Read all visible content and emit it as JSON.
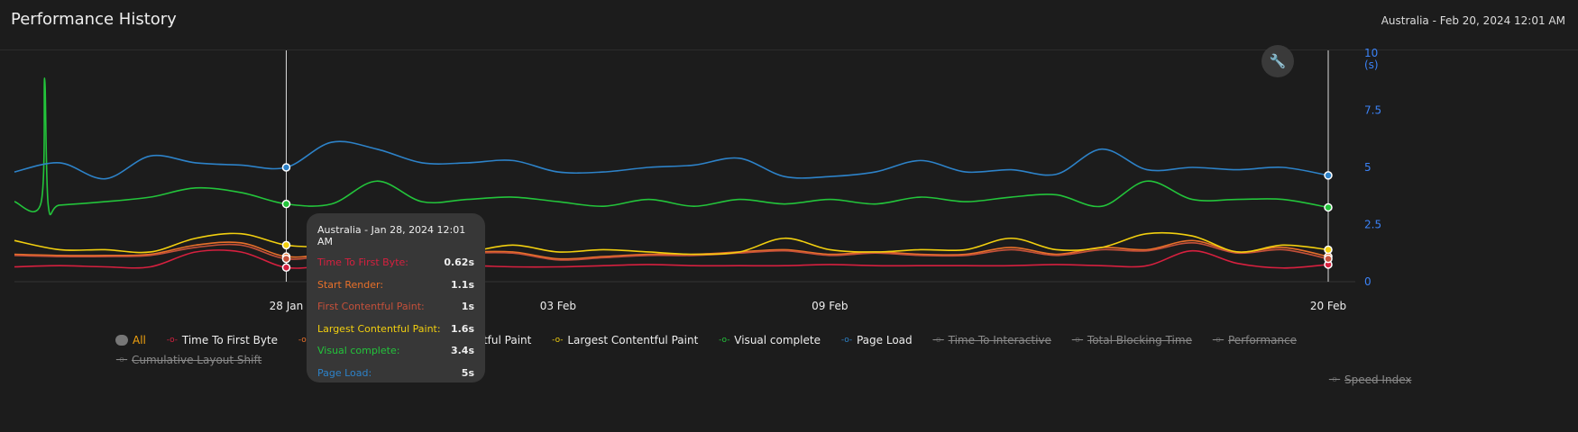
{
  "header": {
    "title": "Performance History",
    "subtitle": "Australia - Feb 20, 2024 12:01 AM"
  },
  "toolbar": {
    "settings_icon": "wrench-icon"
  },
  "chart_data": {
    "type": "line",
    "x_start": "2024-01-22",
    "x_end": "2024-02-20",
    "x_ticks": [
      {
        "date": "2024-01-28",
        "label": "28 Jan"
      },
      {
        "date": "2024-02-03",
        "label": "03 Feb"
      },
      {
        "date": "2024-02-09",
        "label": "09 Feb"
      },
      {
        "date": "2024-02-20",
        "label": "20 Feb"
      }
    ],
    "ylim": [
      0,
      10
    ],
    "y_ticks": [
      "0",
      "2.5",
      "5",
      "7.5",
      "10"
    ],
    "ylabel": "(s)",
    "y_axis_position": "right",
    "grid": false,
    "legend_position": "bottom",
    "series": [
      {
        "name": "Time To First Byte",
        "color": "#d6203f",
        "visible": true,
        "values": [
          0.65,
          0.7,
          0.65,
          0.65,
          1.3,
          1.3,
          0.62,
          0.7,
          0.6,
          0.65,
          0.7,
          0.65,
          0.65,
          0.7,
          0.75,
          0.7,
          0.7,
          0.7,
          0.75,
          0.7,
          0.7,
          0.7,
          0.7,
          0.75,
          0.7,
          0.7,
          1.35,
          0.8,
          0.6,
          0.75
        ]
      },
      {
        "name": "Start Render",
        "color": "#e8702a",
        "visible": true,
        "values": [
          1.2,
          1.15,
          1.15,
          1.2,
          1.6,
          1.7,
          1.1,
          1.2,
          1.2,
          1.2,
          1.3,
          1.3,
          1.0,
          1.1,
          1.2,
          1.2,
          1.3,
          1.4,
          1.2,
          1.3,
          1.2,
          1.2,
          1.5,
          1.2,
          1.5,
          1.4,
          1.8,
          1.3,
          1.5,
          1.1
        ]
      },
      {
        "name": "First Contentful Paint",
        "color": "#c5503a",
        "visible": true,
        "values": [
          1.15,
          1.1,
          1.1,
          1.15,
          1.5,
          1.6,
          1.0,
          1.15,
          1.15,
          1.15,
          1.25,
          1.25,
          0.95,
          1.05,
          1.15,
          1.15,
          1.25,
          1.35,
          1.15,
          1.25,
          1.15,
          1.15,
          1.4,
          1.15,
          1.4,
          1.35,
          1.7,
          1.25,
          1.4,
          1.0
        ]
      },
      {
        "name": "Largest Contentful Paint",
        "color": "#f2cf0f",
        "visible": true,
        "values": [
          1.8,
          1.4,
          1.4,
          1.3,
          1.9,
          2.1,
          1.6,
          1.5,
          1.3,
          1.2,
          1.3,
          1.6,
          1.3,
          1.4,
          1.3,
          1.2,
          1.3,
          1.9,
          1.4,
          1.3,
          1.4,
          1.4,
          1.9,
          1.4,
          1.5,
          2.1,
          2.0,
          1.3,
          1.6,
          1.4
        ]
      },
      {
        "name": "Visual complete",
        "color": "#23c43b",
        "visible": true,
        "values": [
          3.5,
          3.35,
          3.5,
          3.7,
          4.1,
          3.9,
          3.4,
          3.4,
          4.4,
          3.5,
          3.6,
          3.7,
          3.5,
          3.3,
          3.6,
          3.3,
          3.6,
          3.4,
          3.6,
          3.4,
          3.7,
          3.5,
          3.7,
          3.8,
          3.3,
          4.4,
          3.6,
          3.6,
          3.6,
          3.25
        ],
        "spike": {
          "date": "2024-01-22T16:00",
          "value": 8.9
        }
      },
      {
        "name": "Page Load",
        "color": "#2d82c8",
        "visible": true,
        "values": [
          4.8,
          5.2,
          4.5,
          5.5,
          5.2,
          5.1,
          5.0,
          6.1,
          5.8,
          5.2,
          5.2,
          5.3,
          4.8,
          4.8,
          5.0,
          5.1,
          5.4,
          4.6,
          4.6,
          4.8,
          5.3,
          4.8,
          4.9,
          4.7,
          5.8,
          4.9,
          5.0,
          4.9,
          5.0,
          4.65
        ]
      },
      {
        "name": "Time To Interactive",
        "color": "#555555",
        "visible": false
      },
      {
        "name": "Total Blocking Time",
        "color": "#555555",
        "visible": false
      },
      {
        "name": "Performance",
        "color": "#555555",
        "visible": false
      },
      {
        "name": "Cumulative Layout Shift",
        "color": "#555555",
        "visible": false
      },
      {
        "name": "Speed Index",
        "color": "#555555",
        "visible": false
      }
    ]
  },
  "legend": {
    "all_label": "All",
    "items": [
      "Time To First Byte",
      "Start Render",
      "First Contentful Paint",
      "Largest Contentful Paint",
      "Visual complete",
      "Page Load",
      "Time To Interactive",
      "Total Blocking Time",
      "Performance",
      "Cumulative Layout Shift",
      "Speed Index"
    ]
  },
  "tooltip": {
    "date": "2024-01-28",
    "title": "Australia - Jan 28, 2024 12:01 AM",
    "rows": [
      {
        "label": "Time To First Byte:",
        "value": "0.62s",
        "color": "#d6203f"
      },
      {
        "label": "Start Render:",
        "value": "1.1s",
        "color": "#e8702a"
      },
      {
        "label": "First Contentful Paint:",
        "value": "1s",
        "color": "#c5503a"
      },
      {
        "label": "Largest Contentful Paint:",
        "value": "1.6s",
        "color": "#f2cf0f"
      },
      {
        "label": "Visual complete:",
        "value": "3.4s",
        "color": "#23c43b"
      },
      {
        "label": "Page Load:",
        "value": "5s",
        "color": "#2d82c8"
      }
    ]
  }
}
